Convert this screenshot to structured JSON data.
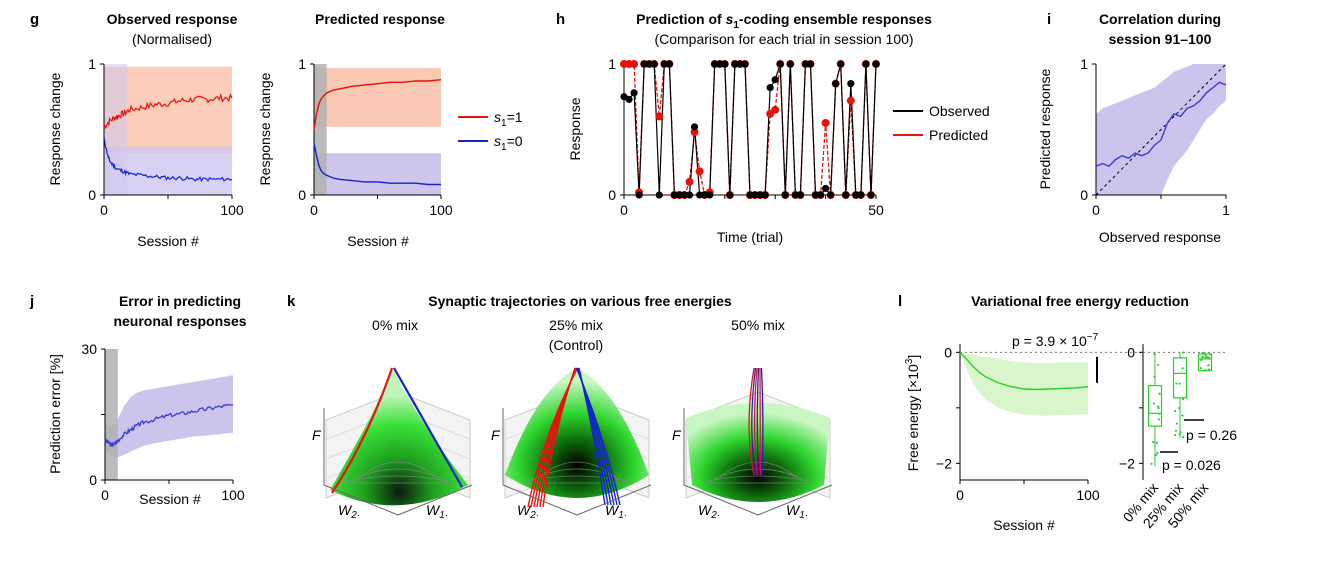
{
  "colors": {
    "red": "#e8120c",
    "blue": "#1424c8",
    "red_band": "#f9c9b4",
    "blue_band": "#cfc6ee",
    "purple": "#3a3cd6",
    "purple_band": "#cdc4ee",
    "green": "#2ecc2e",
    "green_band": "#d9f5cc",
    "gray": "#b0b0b0",
    "black": "#000000"
  },
  "panels": {
    "g": {
      "label": "g",
      "title1": "Observed response",
      "title1_sub": "(Normalised)",
      "title2": "Predicted response",
      "ylabel": "Response change",
      "xlabel": "Session #",
      "legend": [
        "s1=1",
        "s1=0"
      ],
      "legend_sub": "1"
    },
    "h": {
      "label": "h",
      "title_pre": "Prediction of ",
      "title_s": "s",
      "title_sub": "1",
      "title_post": "-coding ensemble responses",
      "subtitle": "(Comparison for each trial in session 100)",
      "ylabel": "Response",
      "xlabel": "Time (trial)",
      "legend": [
        "Observed",
        "Predicted"
      ]
    },
    "i": {
      "label": "i",
      "title_line1": "Correlation during",
      "title_line2": "session 91–100",
      "ylabel": "Predicted response",
      "xlabel": "Observed response"
    },
    "j": {
      "label": "j",
      "title_line1": "Error in predicting",
      "title_line2": "neuronal responses",
      "ylabel": "Prediction error [%]",
      "xlabel": "Session #"
    },
    "k": {
      "label": "k",
      "title": "Synaptic trajectories on various free energies",
      "sub1": "0% mix",
      "sub2": "25% mix",
      "sub2b": "(Control)",
      "sub3": "50% mix",
      "axisF": "F",
      "axisW2": "W",
      "axisW2sub": "2·",
      "axisW1": "W",
      "axisW1sub": "1·"
    },
    "l": {
      "label": "l",
      "title": "Variational free energy reduction",
      "ylabel_pre": "Free energy [×10",
      "ylabel_sup": "3",
      "ylabel_post": "]",
      "xlabel": "Session #",
      "pval_main_pre": "p = 3.9 × 10",
      "pval_main_sup": "−7",
      "pval1": "p = 0.26",
      "pval2": "p = 0.026",
      "box_labels": [
        "0% mix",
        "25% mix",
        "50% mix"
      ]
    }
  },
  "chart_data": [
    {
      "panel": "g-observed",
      "type": "line",
      "title": "Observed response",
      "subtitle": "(Normalised)",
      "xlabel": "Session #",
      "ylabel": "Response change",
      "xlim": [
        0,
        100
      ],
      "ylim": [
        0,
        1
      ],
      "xticks": [
        0,
        100
      ],
      "yticks": [
        0,
        1
      ],
      "series": [
        {
          "name": "s1=1",
          "x": [
            0,
            5,
            10,
            15,
            20,
            30,
            40,
            50,
            60,
            70,
            80,
            90,
            100
          ],
          "values": [
            0.52,
            0.57,
            0.6,
            0.62,
            0.65,
            0.67,
            0.69,
            0.7,
            0.72,
            0.73,
            0.73,
            0.74,
            0.74
          ],
          "band": [
            0.32,
            0.98
          ]
        },
        {
          "name": "s1=0",
          "x": [
            0,
            3,
            5,
            10,
            15,
            20,
            30,
            40,
            50,
            60,
            70,
            80,
            90,
            100
          ],
          "values": [
            0.43,
            0.3,
            0.25,
            0.2,
            0.18,
            0.16,
            0.15,
            0.14,
            0.13,
            0.13,
            0.12,
            0.12,
            0.12,
            0.12
          ],
          "band": [
            0.0,
            0.37
          ]
        }
      ]
    },
    {
      "panel": "g-predicted",
      "type": "line",
      "title": "Predicted response",
      "xlabel": "Session #",
      "ylabel": "Response change",
      "xlim": [
        0,
        100
      ],
      "ylim": [
        0,
        1
      ],
      "xticks": [
        0,
        100
      ],
      "yticks": [
        0,
        1
      ],
      "series": [
        {
          "name": "s1=1",
          "x": [
            0,
            2,
            4,
            6,
            8,
            10,
            15,
            20,
            30,
            40,
            50,
            60,
            70,
            80,
            90,
            100
          ],
          "values": [
            0.5,
            0.62,
            0.7,
            0.74,
            0.76,
            0.78,
            0.8,
            0.81,
            0.83,
            0.84,
            0.85,
            0.86,
            0.86,
            0.87,
            0.87,
            0.88
          ]
        },
        {
          "name": "s1=0",
          "x": [
            0,
            2,
            4,
            6,
            8,
            10,
            15,
            20,
            30,
            40,
            50,
            60,
            70,
            80,
            90,
            100
          ],
          "values": [
            0.4,
            0.3,
            0.22,
            0.18,
            0.16,
            0.15,
            0.13,
            0.12,
            0.11,
            0.1,
            0.1,
            0.09,
            0.09,
            0.09,
            0.08,
            0.08
          ]
        }
      ]
    },
    {
      "panel": "h",
      "type": "line",
      "title": "Prediction of s1-coding ensemble responses",
      "subtitle": "(Comparison for each trial in session 100)",
      "xlabel": "Time (trial)",
      "ylabel": "Response",
      "xlim": [
        0,
        50
      ],
      "ylim": [
        0,
        1
      ],
      "xticks": [
        0,
        50
      ],
      "yticks": [
        0,
        1
      ],
      "series": [
        {
          "name": "Observed",
          "values": [
            0.75,
            0.73,
            0.78,
            0.0,
            1.0,
            1.0,
            1.0,
            0.0,
            1.0,
            1.0,
            0.0,
            0.0,
            0.0,
            0.0,
            0.52,
            0.0,
            0.0,
            0.0,
            1.0,
            1.0,
            1.0,
            0.0,
            1.0,
            1.0,
            1.0,
            0.0,
            0.0,
            0.0,
            0.0,
            0.82,
            0.88,
            1.0,
            0.0,
            1.0,
            0.0,
            0.0,
            1.0,
            1.0,
            0.0,
            0.0,
            0.05,
            0.0,
            0.85,
            1.0,
            0.0,
            0.85,
            0.0,
            0.0,
            1.0,
            0.0,
            1.0
          ]
        },
        {
          "name": "Predicted",
          "values": [
            1.0,
            1.0,
            1.0,
            0.02,
            1.0,
            1.0,
            1.0,
            0.6,
            1.0,
            1.0,
            0.0,
            0.0,
            0.0,
            0.1,
            0.48,
            0.18,
            0.0,
            0.02,
            1.0,
            1.0,
            1.0,
            0.0,
            1.0,
            1.0,
            1.0,
            0.0,
            0.0,
            0.0,
            0.0,
            0.62,
            0.65,
            1.0,
            0.0,
            1.0,
            0.0,
            0.0,
            1.0,
            1.0,
            0.0,
            0.0,
            0.55,
            0.0,
            0.85,
            1.0,
            0.0,
            0.72,
            0.0,
            0.0,
            1.0,
            0.0,
            1.0
          ]
        }
      ]
    },
    {
      "panel": "i",
      "type": "line",
      "title": "Correlation during session 91–100",
      "xlabel": "Observed response",
      "ylabel": "Predicted response",
      "xlim": [
        0,
        1
      ],
      "ylim": [
        0,
        1
      ],
      "xticks": [
        0,
        1
      ],
      "yticks": [
        0,
        1
      ],
      "series": [
        {
          "x": [
            0,
            0.05,
            0.1,
            0.15,
            0.2,
            0.25,
            0.3,
            0.35,
            0.4,
            0.45,
            0.5,
            0.55,
            0.6,
            0.65,
            0.7,
            0.75,
            0.8,
            0.85,
            0.9,
            0.95,
            1.0
          ],
          "values": [
            0.22,
            0.24,
            0.22,
            0.27,
            0.3,
            0.28,
            0.32,
            0.3,
            0.32,
            0.38,
            0.42,
            0.55,
            0.62,
            0.6,
            0.66,
            0.68,
            0.72,
            0.78,
            0.82,
            0.86,
            0.84
          ],
          "lower": [
            0.0,
            0.0,
            0.0,
            0.0,
            0.0,
            0.0,
            0.0,
            0.0,
            0.0,
            0.0,
            0.0,
            0.12,
            0.22,
            0.28,
            0.34,
            0.42,
            0.5,
            0.58,
            0.62,
            0.68,
            0.72
          ],
          "upper": [
            0.62,
            0.66,
            0.68,
            0.7,
            0.72,
            0.74,
            0.76,
            0.78,
            0.8,
            0.82,
            0.86,
            0.9,
            0.94,
            0.96,
            0.98,
            1.0,
            1.0,
            1.0,
            1.0,
            1.0,
            1.0
          ]
        }
      ]
    },
    {
      "panel": "j",
      "type": "line",
      "title": "Error in predicting neuronal responses",
      "xlabel": "Session #",
      "ylabel": "Prediction error [%]",
      "xlim": [
        0,
        100
      ],
      "ylim": [
        0,
        30
      ],
      "xticks": [
        0,
        100
      ],
      "yticks": [
        0,
        30
      ],
      "series": [
        {
          "x": [
            0,
            3,
            5,
            8,
            10,
            15,
            20,
            25,
            30,
            40,
            50,
            60,
            70,
            80,
            90,
            100
          ],
          "values": [
            9.2,
            8.5,
            8.0,
            8.3,
            9.0,
            10.5,
            11.5,
            12.5,
            13.2,
            14.0,
            14.8,
            15.2,
            15.8,
            16.3,
            16.8,
            17.2
          ],
          "lower": [
            6.5,
            5.8,
            5.2,
            5.0,
            5.2,
            5.8,
            6.5,
            7.2,
            7.8,
            8.5,
            9.0,
            9.5,
            10.0,
            10.2,
            10.5,
            10.8
          ],
          "upper": [
            13,
            12,
            12.5,
            13,
            14,
            17,
            19,
            20,
            20.5,
            21,
            21.5,
            22,
            22.5,
            23,
            23.5,
            24
          ]
        }
      ]
    },
    {
      "panel": "l-line",
      "type": "line",
      "title": "Variational free energy reduction",
      "xlabel": "Session #",
      "ylabel": "Free energy [×10^3]",
      "xlim": [
        0,
        100
      ],
      "ylim": [
        -2.3,
        0.15
      ],
      "xticks": [
        0,
        100
      ],
      "yticks": [
        -2,
        0
      ],
      "series": [
        {
          "x": [
            0,
            5,
            10,
            15,
            20,
            30,
            40,
            50,
            60,
            70,
            80,
            90,
            100
          ],
          "values": [
            0.0,
            -0.12,
            -0.25,
            -0.36,
            -0.44,
            -0.55,
            -0.62,
            -0.66,
            -0.67,
            -0.66,
            -0.65,
            -0.64,
            -0.62
          ],
          "lower": [
            0.0,
            -0.3,
            -0.55,
            -0.72,
            -0.85,
            -1.0,
            -1.08,
            -1.12,
            -1.14,
            -1.14,
            -1.13,
            -1.12,
            -1.12
          ],
          "upper": [
            0.0,
            -0.02,
            -0.04,
            -0.06,
            -0.08,
            -0.12,
            -0.16,
            -0.18,
            -0.19,
            -0.19,
            -0.18,
            -0.18,
            -0.18
          ]
        }
      ]
    },
    {
      "panel": "l-box",
      "type": "box",
      "categories": [
        "0% mix",
        "25% mix",
        "50% mix"
      ],
      "ylim": [
        -2.3,
        0.15
      ],
      "yticks": [
        -2,
        0
      ],
      "boxes": [
        {
          "min": -2.05,
          "q1": -1.33,
          "median": -1.1,
          "q3": -0.6,
          "max": 0.0
        },
        {
          "min": -1.55,
          "q1": -0.82,
          "median": -0.38,
          "q3": -0.1,
          "max": 0.0
        },
        {
          "min": -0.33,
          "q1": -0.33,
          "median": -0.12,
          "q3": -0.03,
          "max": 0.0
        }
      ]
    }
  ]
}
